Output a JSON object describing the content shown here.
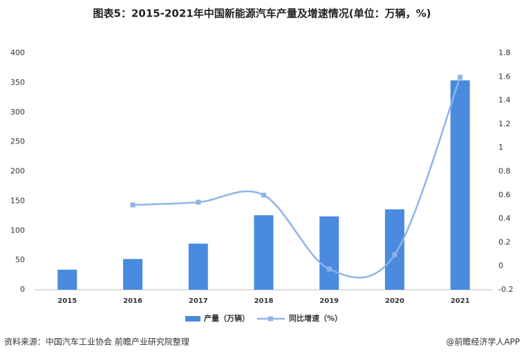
{
  "chart_data": {
    "type": "bar-line",
    "title": "图表5：2015-2021年中国新能源汽车产量及增速情况(单位：万辆，%)",
    "categories": [
      "2015",
      "2016",
      "2017",
      "2018",
      "2019",
      "2020",
      "2021"
    ],
    "series": [
      {
        "name": "产量（万辆）",
        "color": "#4a8be0",
        "type": "bar",
        "values": [
          34,
          52,
          78,
          126,
          124,
          136,
          354
        ]
      },
      {
        "name": "同比增速（%）",
        "color": "#8db4e5",
        "type": "line",
        "axis": "y2",
        "values": [
          null,
          0.517,
          0.54,
          0.6,
          -0.025,
          0.097,
          1.596
        ]
      }
    ],
    "ylim": [
      0,
      400
    ],
    "yticks": [
      0,
      50,
      100,
      150,
      200,
      250,
      300,
      350,
      400
    ],
    "y2lim": [
      -0.2,
      1.8
    ],
    "y2ticks": [
      -0.2,
      0,
      0.2,
      0.4,
      0.6,
      0.8,
      1,
      1.2,
      1.4,
      1.6,
      1.8
    ],
    "legend": "bottom",
    "source": "资料来源：中国汽车工业协会 前瞻产业研究院整理",
    "credit": "@前瞻经济学人APP"
  }
}
